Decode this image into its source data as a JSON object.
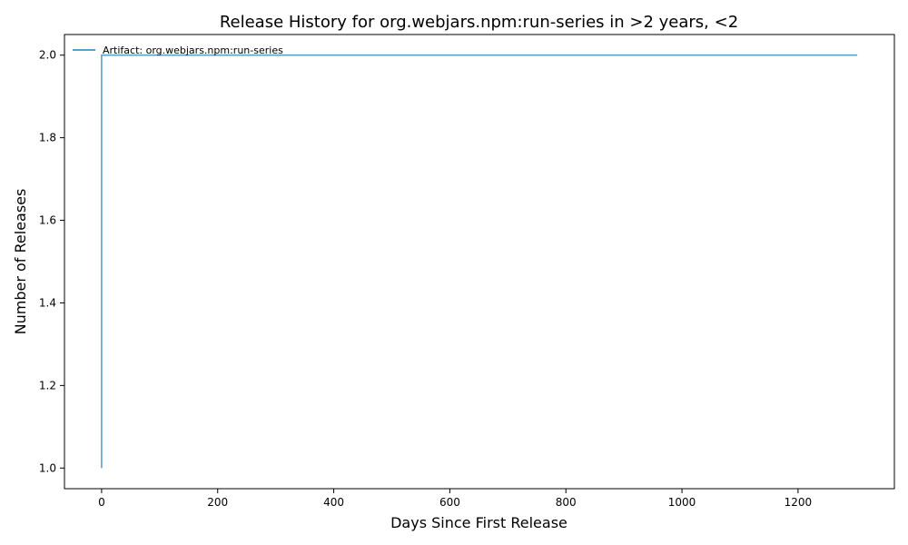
{
  "chart_data": {
    "type": "line",
    "title": "Release History for org.webjars.npm:run-series in >2 years, <2",
    "xlabel": "Days Since First Release",
    "ylabel": "Number of Releases",
    "xlim": [
      -64,
      1366
    ],
    "ylim": [
      0.95,
      2.05
    ],
    "xticks": [
      0,
      200,
      400,
      600,
      800,
      1000,
      1200
    ],
    "yticks": [
      1.0,
      1.2,
      1.4,
      1.6,
      1.8,
      2.0
    ],
    "xtick_labels": [
      "0",
      "200",
      "400",
      "600",
      "800",
      "1000",
      "1200"
    ],
    "ytick_labels": [
      "1.0",
      "1.2",
      "1.4",
      "1.6",
      "1.8",
      "2.0"
    ],
    "grid": false,
    "legend_position": "top-left",
    "series": [
      {
        "name": "Artifact: org.webjars.npm:run-series",
        "color": "#5b9fd0",
        "step": "post",
        "x": [
          0,
          0,
          1302
        ],
        "y": [
          1,
          2,
          2
        ]
      }
    ]
  }
}
